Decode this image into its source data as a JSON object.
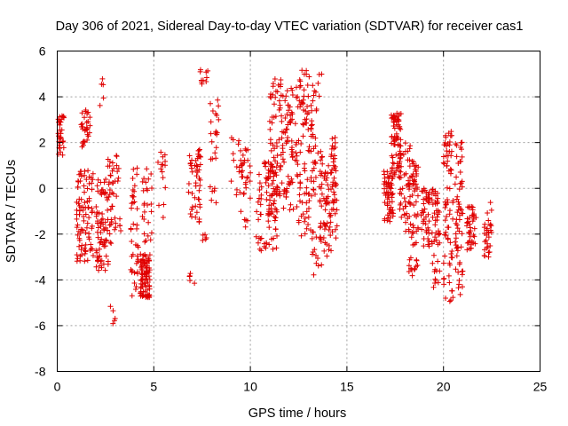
{
  "chart_data": {
    "type": "scatter",
    "title": "Day 306 of 2021, Sidereal Day-to-day VTEC variation (SDTVAR) for receiver cas1",
    "xlabel": "GPS time / hours",
    "ylabel": "SDTVAR / TECUs",
    "xlim": [
      0,
      25
    ],
    "ylim": [
      -8,
      6
    ],
    "xticks": [
      "0",
      "5",
      "10",
      "15",
      "20",
      "25"
    ],
    "yticks": [
      "-8",
      "-6",
      "-4",
      "-2",
      "0",
      "2",
      "4",
      "6"
    ],
    "grid": true,
    "marker": "plus",
    "color": "#e00000",
    "clusters": [
      {
        "x": [
          0.05,
          0.35
        ],
        "y": [
          1.4,
          3.2
        ],
        "n": 30
      },
      {
        "x": [
          1.0,
          1.9
        ],
        "y": [
          -3.3,
          0.8
        ],
        "n": 90
      },
      {
        "x": [
          1.2,
          1.7
        ],
        "y": [
          1.8,
          3.5
        ],
        "n": 30
      },
      {
        "x": [
          2.0,
          2.8
        ],
        "y": [
          -3.8,
          0.4
        ],
        "n": 80
      },
      {
        "x": [
          2.2,
          2.4
        ],
        "y": [
          3.3,
          4.8
        ],
        "n": 5
      },
      {
        "x": [
          2.7,
          3.0
        ],
        "y": [
          -6.1,
          -5.1
        ],
        "n": 5
      },
      {
        "x": [
          2.6,
          3.3
        ],
        "y": [
          -2.0,
          1.5
        ],
        "n": 40
      },
      {
        "x": [
          3.8,
          4.2
        ],
        "y": [
          -4.9,
          1.1
        ],
        "n": 40
      },
      {
        "x": [
          4.3,
          4.8
        ],
        "y": [
          -4.8,
          -2.8
        ],
        "n": 90
      },
      {
        "x": [
          4.4,
          4.9
        ],
        "y": [
          -2.5,
          1.0
        ],
        "n": 25
      },
      {
        "x": [
          5.2,
          5.6
        ],
        "y": [
          -1.3,
          1.6
        ],
        "n": 15
      },
      {
        "x": [
          6.8,
          7.3
        ],
        "y": [
          -4.5,
          -3.7
        ],
        "n": 5
      },
      {
        "x": [
          6.8,
          7.5
        ],
        "y": [
          -1.5,
          1.7
        ],
        "n": 50
      },
      {
        "x": [
          7.4,
          7.8
        ],
        "y": [
          4.5,
          5.2
        ],
        "n": 10
      },
      {
        "x": [
          7.5,
          7.8
        ],
        "y": [
          -2.3,
          -2.0
        ],
        "n": 5
      },
      {
        "x": [
          7.9,
          8.4
        ],
        "y": [
          -0.8,
          3.9
        ],
        "n": 25
      },
      {
        "x": [
          9.0,
          9.7
        ],
        "y": [
          -0.3,
          2.3
        ],
        "n": 20
      },
      {
        "x": [
          9.5,
          10.0
        ],
        "y": [
          -1.7,
          2.1
        ],
        "n": 25
      },
      {
        "x": [
          10.3,
          10.6
        ],
        "y": [
          -2.8,
          0.7
        ],
        "n": 20
      },
      {
        "x": [
          10.7,
          11.4
        ],
        "y": [
          -2.7,
          1.2
        ],
        "n": 70
      },
      {
        "x": [
          11.0,
          11.6
        ],
        "y": [
          -1.0,
          4.8
        ],
        "n": 60
      },
      {
        "x": [
          11.6,
          12.5
        ],
        "y": [
          -1.2,
          4.5
        ],
        "n": 80
      },
      {
        "x": [
          12.5,
          13.3
        ],
        "y": [
          -2.2,
          5.2
        ],
        "n": 90
      },
      {
        "x": [
          13.2,
          13.7
        ],
        "y": [
          -4.2,
          5.0
        ],
        "n": 40
      },
      {
        "x": [
          13.6,
          14.2
        ],
        "y": [
          -3.0,
          1.4
        ],
        "n": 60
      },
      {
        "x": [
          14.2,
          14.5
        ],
        "y": [
          -2.4,
          2.3
        ],
        "n": 40
      },
      {
        "x": [
          16.9,
          17.4
        ],
        "y": [
          -1.5,
          0.8
        ],
        "n": 60
      },
      {
        "x": [
          17.3,
          17.8
        ],
        "y": [
          0.5,
          3.3
        ],
        "n": 70
      },
      {
        "x": [
          17.7,
          18.3
        ],
        "y": [
          -2.2,
          2.0
        ],
        "n": 50
      },
      {
        "x": [
          18.2,
          18.7
        ],
        "y": [
          -4.0,
          1.2
        ],
        "n": 60
      },
      {
        "x": [
          18.8,
          19.3
        ],
        "y": [
          -2.6,
          0.0
        ],
        "n": 40
      },
      {
        "x": [
          19.4,
          19.8
        ],
        "y": [
          -4.5,
          0.0
        ],
        "n": 50
      },
      {
        "x": [
          20.0,
          20.5
        ],
        "y": [
          -5.0,
          2.5
        ],
        "n": 70
      },
      {
        "x": [
          20.6,
          21.0
        ],
        "y": [
          -4.9,
          2.3
        ],
        "n": 60
      },
      {
        "x": [
          21.2,
          21.7
        ],
        "y": [
          -2.9,
          -0.8
        ],
        "n": 40
      },
      {
        "x": [
          22.1,
          22.5
        ],
        "y": [
          -3.0,
          -0.5
        ],
        "n": 30
      }
    ]
  }
}
